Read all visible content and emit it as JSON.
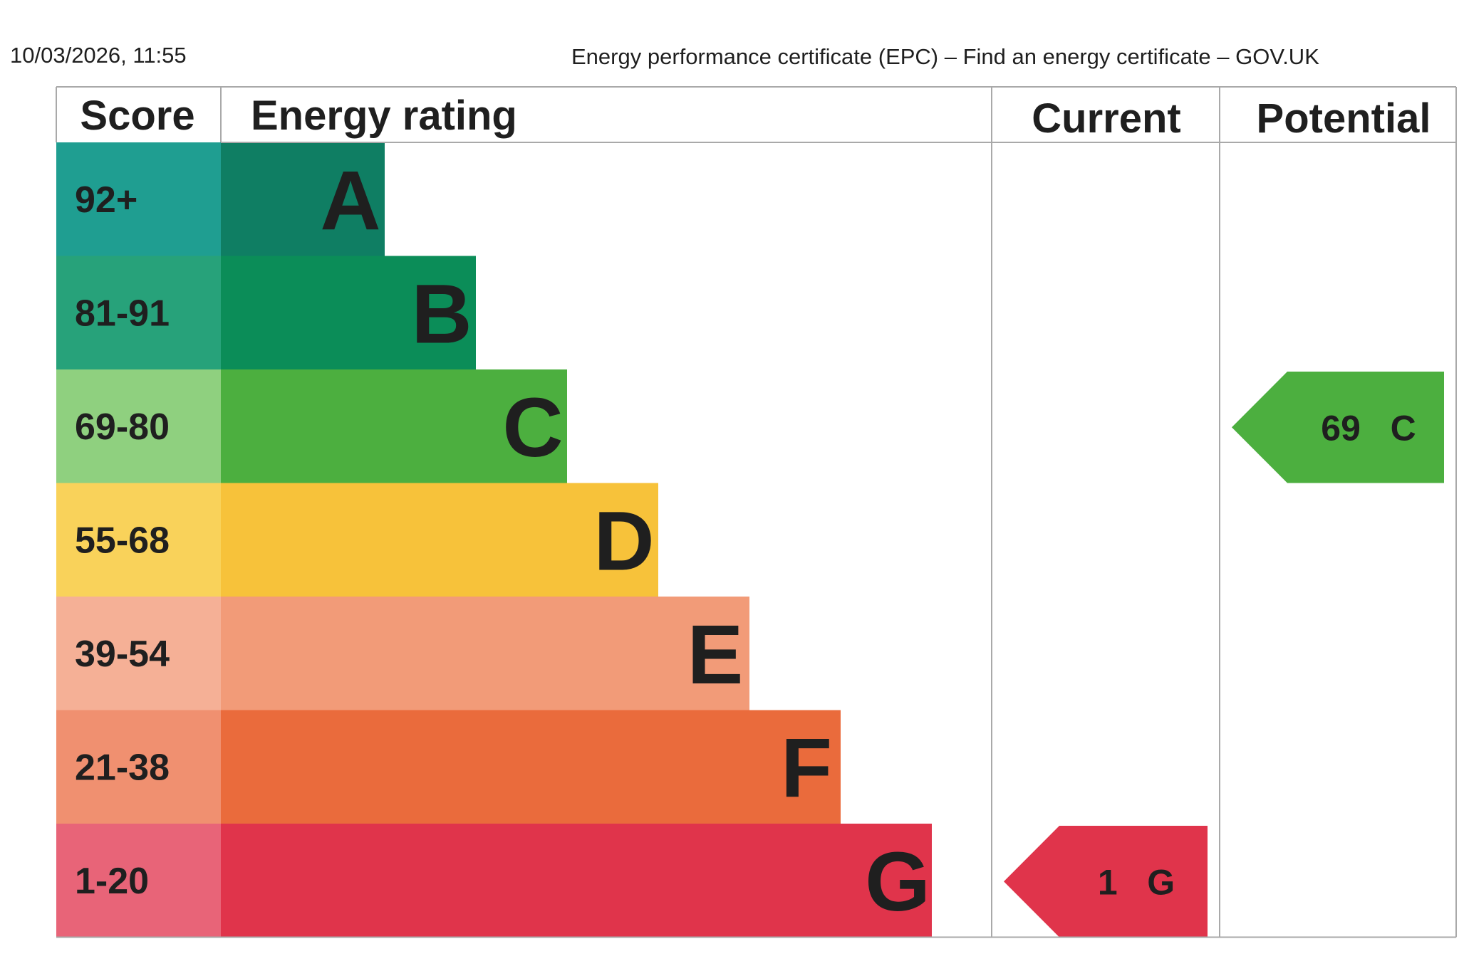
{
  "print_header": {
    "datetime": "10/03/2026, 11:55",
    "page_title": "Energy performance certificate (EPC) – Find an energy certificate – GOV.UK"
  },
  "chart_data": {
    "type": "bar",
    "columns": {
      "score": "Score",
      "rating": "Energy rating",
      "current": "Current",
      "potential": "Potential"
    },
    "bands": [
      {
        "letter": "A",
        "score": "92+",
        "bar_color": "#0f7e63",
        "score_color": "#1f9e91"
      },
      {
        "letter": "B",
        "score": "81-91",
        "bar_color": "#0b8d58",
        "score_color": "#27a27a"
      },
      {
        "letter": "C",
        "score": "69-80",
        "bar_color": "#4caf3f",
        "score_color": "#8fd07f"
      },
      {
        "letter": "D",
        "score": "55-68",
        "bar_color": "#f7c23a",
        "score_color": "#f9d25a"
      },
      {
        "letter": "E",
        "score": "39-54",
        "bar_color": "#f29b78",
        "score_color": "#f5b096"
      },
      {
        "letter": "F",
        "score": "21-38",
        "bar_color": "#ea6b3c",
        "score_color": "#f09070"
      },
      {
        "letter": "G",
        "score": "1-20",
        "bar_color": "#e0344b",
        "score_color": "#e86478"
      }
    ],
    "current": {
      "value": 1,
      "letter": "G",
      "label": "1 G",
      "color": "#e0344b"
    },
    "potential": {
      "value": 69,
      "letter": "C",
      "label": "69 C",
      "color": "#4caf3f"
    }
  }
}
